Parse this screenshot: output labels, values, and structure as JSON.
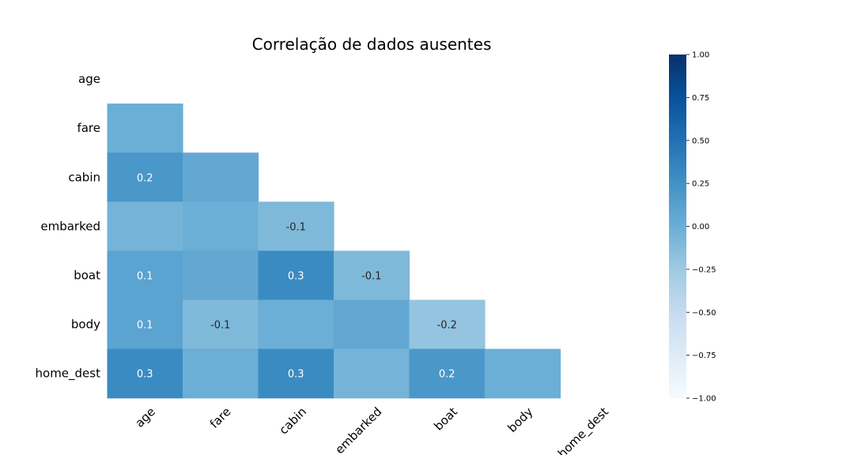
{
  "chart_data": {
    "type": "heatmap",
    "title": "Correlação de dados ausentes",
    "rows": [
      "age",
      "fare",
      "cabin",
      "embarked",
      "boat",
      "body",
      "home_dest"
    ],
    "columns": [
      "age",
      "fare",
      "cabin",
      "embarked",
      "boat",
      "body",
      "home_dest"
    ],
    "mask": "upper-triangle-and-diagonal",
    "values": [
      [
        null,
        null,
        null,
        null,
        null,
        null,
        null
      ],
      [
        0.0,
        null,
        null,
        null,
        null,
        null,
        null
      ],
      [
        0.2,
        0.05,
        null,
        null,
        null,
        null,
        null
      ],
      [
        -0.05,
        0.0,
        -0.1,
        null,
        null,
        null,
        null
      ],
      [
        0.1,
        0.05,
        0.3,
        -0.1,
        null,
        null,
        null
      ],
      [
        0.1,
        -0.1,
        0.0,
        0.05,
        -0.2,
        null,
        null
      ],
      [
        0.3,
        0.0,
        0.3,
        -0.05,
        0.2,
        0.0,
        null
      ]
    ],
    "cell_labels": [
      [
        "",
        "",
        "",
        "",
        "",
        "",
        ""
      ],
      [
        "",
        "",
        "",
        "",
        "",
        "",
        ""
      ],
      [
        "0.2",
        "",
        "",
        "",
        "",
        "",
        ""
      ],
      [
        "",
        "",
        "-0.1",
        "",
        "",
        "",
        ""
      ],
      [
        "0.1",
        "",
        "0.3",
        "-0.1",
        "",
        "",
        ""
      ],
      [
        "0.1",
        "-0.1",
        "",
        "",
        "-0.2",
        "",
        ""
      ],
      [
        "0.3",
        "",
        "0.3",
        "",
        "0.2",
        "",
        ""
      ]
    ],
    "colorbar": {
      "colormap": "Blues",
      "range": [
        -1,
        1
      ],
      "ticks": [
        "1.00",
        "0.75",
        "0.50",
        "0.25",
        "0.00",
        "−0.25",
        "−0.50",
        "−0.75",
        "−1.00"
      ]
    },
    "grid": false
  }
}
